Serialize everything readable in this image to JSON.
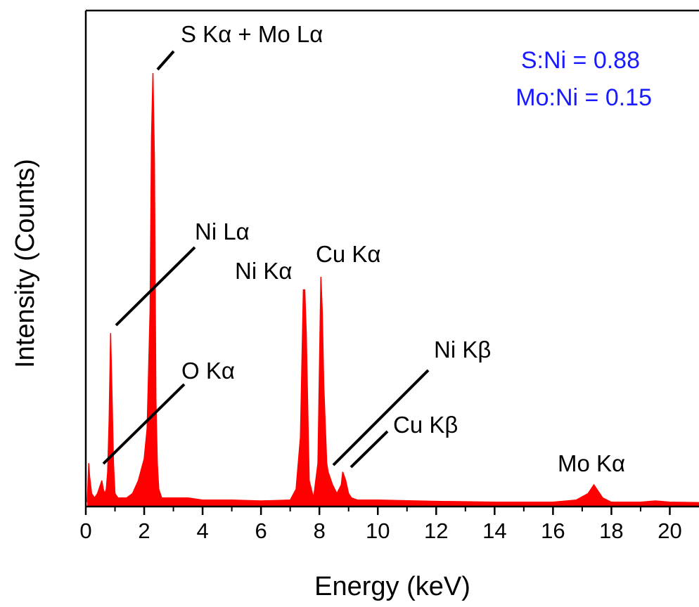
{
  "chart_data": {
    "type": "line",
    "title": "",
    "xlabel": "Energy (keV)",
    "ylabel": "Intensity (Counts)",
    "xlim": [
      0,
      21
    ],
    "ylim": [
      0,
      100
    ],
    "x_ticks": [
      0,
      2,
      4,
      6,
      8,
      10,
      12,
      14,
      16,
      18,
      20
    ],
    "x_tick_labels": [
      "0",
      "2",
      "4",
      "6",
      "8",
      "10",
      "12",
      "14",
      "16",
      "18",
      "20"
    ],
    "y_ticks_shown": false,
    "series": [
      {
        "color": "#ff0000",
        "fill": true,
        "x": [
          0.05,
          0.1,
          0.13,
          0.2,
          0.3,
          0.4,
          0.5,
          0.55,
          0.6,
          0.65,
          0.7,
          0.75,
          0.8,
          0.85,
          0.9,
          0.95,
          1.0,
          1.1,
          1.2,
          1.4,
          1.6,
          1.8,
          2.0,
          2.1,
          2.2,
          2.25,
          2.3,
          2.35,
          2.4,
          2.45,
          2.5,
          2.6,
          2.8,
          3.0,
          3.5,
          4.0,
          5.0,
          6.0,
          7.0,
          7.2,
          7.35,
          7.45,
          7.5,
          7.55,
          7.65,
          7.8,
          7.95,
          8.05,
          8.1,
          8.15,
          8.25,
          8.3,
          8.45,
          8.6,
          8.75,
          8.8,
          8.9,
          9.0,
          9.1,
          9.3,
          10.0,
          12.0,
          14.0,
          16.0,
          16.8,
          17.2,
          17.4,
          17.5,
          17.7,
          18.0,
          19.0,
          19.5,
          19.7,
          20.0,
          21.0
        ],
        "y": [
          1,
          10,
          7,
          3,
          2,
          3,
          5,
          6,
          4,
          3,
          4,
          8,
          20,
          40,
          25,
          10,
          3,
          2,
          2,
          2,
          3,
          6,
          11,
          18,
          45,
          85,
          100,
          80,
          25,
          10,
          4,
          2,
          2,
          2,
          2,
          1.5,
          1.5,
          1.3,
          1.5,
          4,
          16,
          50,
          50,
          40,
          6,
          2,
          10,
          53,
          45,
          28,
          10,
          8,
          5,
          3,
          5,
          8,
          6,
          3,
          2,
          1.5,
          1.5,
          1.2,
          1,
          1,
          1.5,
          3,
          5,
          4,
          2,
          1,
          1,
          1.3,
          1.2,
          1,
          0.9
        ]
      }
    ],
    "annotations": [
      {
        "text": "S Kα + Mo Lα",
        "peak_x": 2.3
      },
      {
        "text": "Ni Lα",
        "peak_x": 0.85
      },
      {
        "text": "O Kα",
        "peak_x": 0.55
      },
      {
        "text": "Ni Kα",
        "peak_x": 7.5
      },
      {
        "text": "Cu Kα",
        "peak_x": 8.05
      },
      {
        "text": "Ni Kβ",
        "peak_x": 8.3
      },
      {
        "text": "Cu Kβ",
        "peak_x": 8.9
      },
      {
        "text": "Mo Kα",
        "peak_x": 17.5
      }
    ],
    "ratio_labels": [
      "S:Ni = 0.88",
      "Mo:Ni = 0.15"
    ],
    "ratio_color": "#1a1aff"
  }
}
